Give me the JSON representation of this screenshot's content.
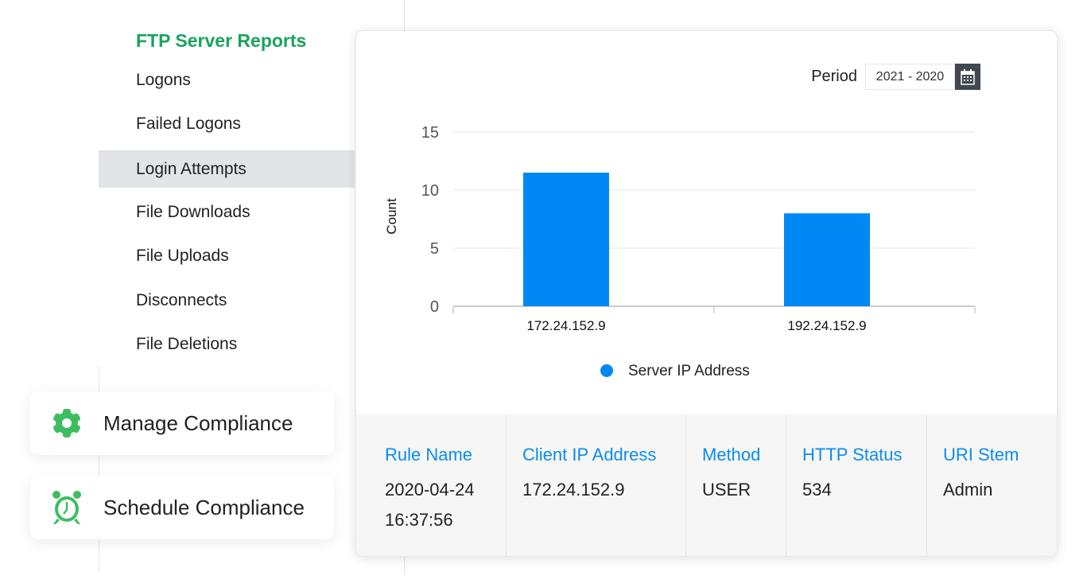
{
  "sidebar": {
    "title": "FTP Server Reports",
    "items": [
      {
        "label": "Logons"
      },
      {
        "label": "Failed Logons"
      },
      {
        "label": "Login Attempts",
        "active": true
      },
      {
        "label": "File Downloads"
      },
      {
        "label": "File Uploads"
      },
      {
        "label": "Disconnects"
      },
      {
        "label": "File Deletions"
      }
    ]
  },
  "actions": {
    "manage": "Manage Compliance",
    "schedule": "Schedule Compliance",
    "icon_color": "#3dbd61"
  },
  "period": {
    "label": "Period",
    "value": "2021 - 2020",
    "icon": "calendar-icon"
  },
  "chart_data": {
    "type": "bar",
    "categories": [
      "172.24.152.9",
      "192.24.152.9"
    ],
    "series": [
      {
        "name": "Server IP Address",
        "values": [
          11.5,
          8
        ],
        "color": "#0088f5"
      }
    ],
    "ylabel": "Count",
    "ylim": [
      0,
      15
    ],
    "yticks": [
      0,
      5,
      10,
      15
    ],
    "grid": true,
    "legend": "bottom"
  },
  "table": {
    "columns": [
      {
        "header": "Rule Name",
        "value": "2020-04-24 16:37:56"
      },
      {
        "header": "Client IP Address",
        "value": "172.24.152.9"
      },
      {
        "header": "Method",
        "value": "USER"
      },
      {
        "header": "HTTP Status",
        "value": "534"
      },
      {
        "header": "URI Stem",
        "value": "Admin"
      }
    ]
  }
}
